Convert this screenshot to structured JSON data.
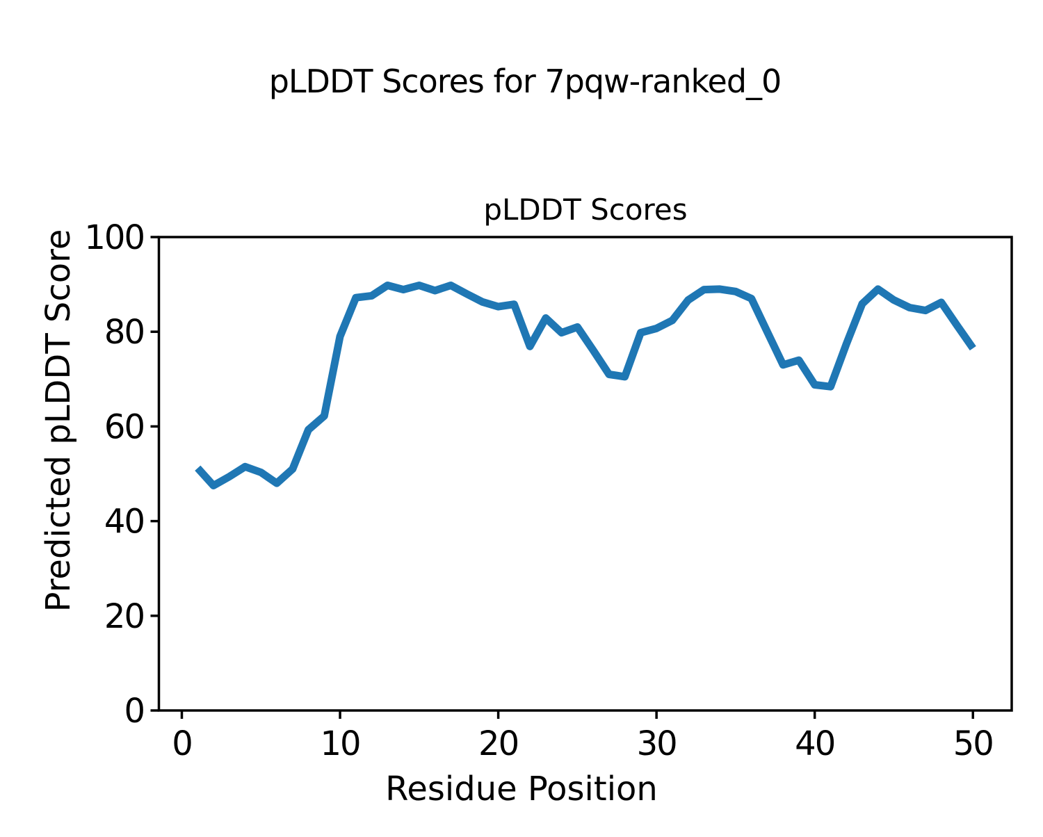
{
  "figure": {
    "suptitle": "pLDDT Scores for 7pqw-ranked_0",
    "axes_title": "pLDDT Scores",
    "xlabel": "Residue Position",
    "ylabel": "Predicted pLDDT Score"
  },
  "chart_data": {
    "type": "line",
    "title": "pLDDT Scores",
    "suptitle": "pLDDT Scores for 7pqw-ranked_0",
    "xlabel": "Residue Position",
    "ylabel": "Predicted pLDDT Score",
    "x": [
      1,
      2,
      3,
      4,
      5,
      6,
      7,
      8,
      9,
      10,
      11,
      12,
      13,
      14,
      15,
      16,
      17,
      18,
      19,
      20,
      21,
      22,
      23,
      24,
      25,
      26,
      27,
      28,
      29,
      30,
      31,
      32,
      33,
      34,
      35,
      36,
      37,
      38,
      39,
      40,
      41,
      42,
      43,
      44,
      45,
      46,
      47,
      48,
      49,
      50
    ],
    "y": [
      51.2,
      47.5,
      49.4,
      51.5,
      50.3,
      48.0,
      51.0,
      59.3,
      62.2,
      79.0,
      87.2,
      87.6,
      89.8,
      88.9,
      89.8,
      88.7,
      89.8,
      88.0,
      86.3,
      85.3,
      85.8,
      76.9,
      82.9,
      79.8,
      81.0,
      76.1,
      71.0,
      70.5,
      79.8,
      80.7,
      82.4,
      86.7,
      88.9,
      89.0,
      88.5,
      87.0,
      80.0,
      73.0,
      74.0,
      68.8,
      68.4,
      77.4,
      85.9,
      89.0,
      86.7,
      85.1,
      84.5,
      86.2,
      81.3,
      76.5
    ],
    "xticks": [
      0,
      10,
      20,
      30,
      40,
      50
    ],
    "yticks": [
      0,
      20,
      40,
      60,
      80,
      100
    ],
    "xlim": [
      -1.45,
      52.45
    ],
    "ylim": [
      0,
      100
    ],
    "grid": false,
    "legend": null,
    "line_color": "#1f77b4",
    "axis_color": "#000000",
    "background_color": "#ffffff"
  }
}
